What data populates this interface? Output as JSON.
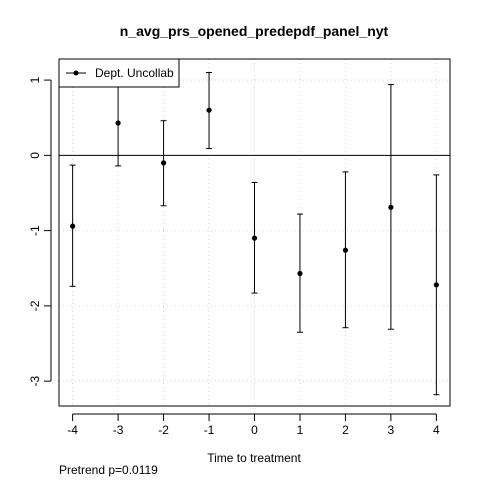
{
  "chart_data": {
    "type": "scatter",
    "title": "n_avg_prs_opened_predepdf_panel_nyt",
    "xlabel": "Time to treatment",
    "ylabel": "",
    "x": [
      -4,
      -3,
      -2,
      -1,
      0,
      1,
      2,
      3,
      4
    ],
    "xticks": [
      "-4",
      "-3",
      "-2",
      "-1",
      "0",
      "1",
      "2",
      "3",
      "4"
    ],
    "yticks": [
      "-3",
      "-2",
      "-1",
      "0",
      "1"
    ],
    "xlim": [
      -4.3,
      4.3
    ],
    "ylim": [
      -3.33,
      1.28
    ],
    "reference_line_y": 0,
    "grid": true,
    "legend_position": "top-left",
    "series": [
      {
        "name": "Dept. Uncollab",
        "estimate": [
          -0.94,
          0.43,
          -0.1,
          0.6,
          -1.1,
          -1.57,
          -1.26,
          -0.69,
          -1.72
        ],
        "ci_lower": [
          -1.74,
          -0.14,
          -0.67,
          0.09,
          -1.83,
          -2.35,
          -2.29,
          -2.31,
          -3.18
        ],
        "ci_upper": [
          -0.13,
          1.0,
          0.46,
          1.1,
          -0.36,
          -0.78,
          -0.22,
          0.94,
          -0.26
        ]
      }
    ],
    "annotation": "Pretrend p=0.0119"
  }
}
